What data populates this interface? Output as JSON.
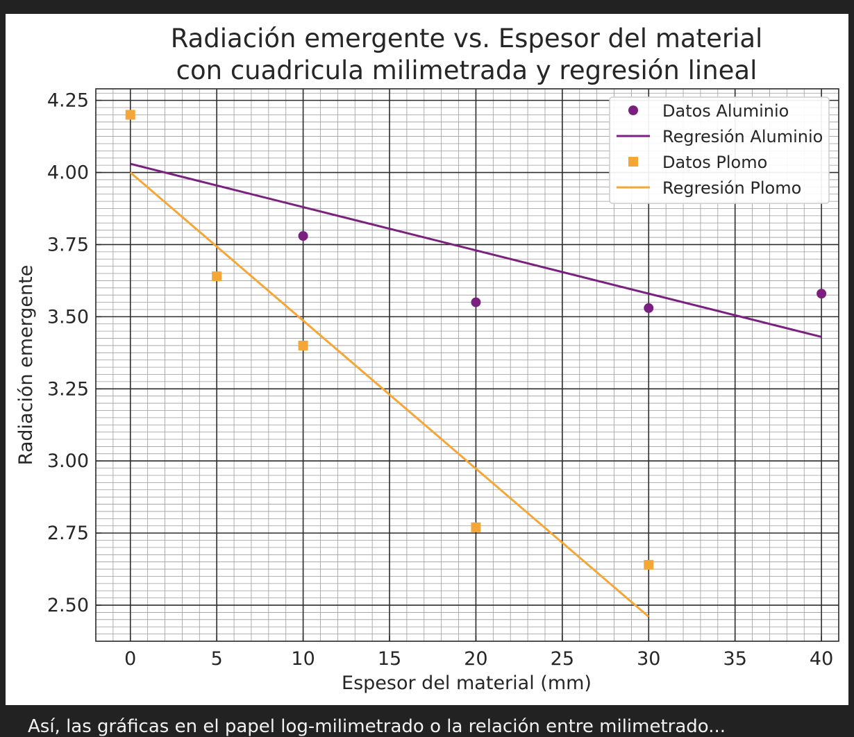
{
  "chart_data": {
    "type": "scatter",
    "title_lines": [
      "Radiación emergente vs. Espesor del material",
      "con cuadricula milimetrada y regresión lineal"
    ],
    "xlabel": "Espesor del material (mm)",
    "ylabel": "Radiación emergente",
    "xlim": [
      -2,
      41
    ],
    "ylim": [
      2.375,
      4.29
    ],
    "xticks": [
      0,
      5,
      10,
      15,
      20,
      25,
      30,
      35,
      40
    ],
    "yticks": [
      2.5,
      2.75,
      3.0,
      3.25,
      3.5,
      3.75,
      4.0,
      4.25
    ],
    "ytick_labels": [
      "2.50",
      "2.75",
      "3.00",
      "3.25",
      "3.50",
      "3.75",
      "4.00",
      "4.25"
    ],
    "grid": "on (major and minor, milimetrada)",
    "legend_position": "top-right",
    "series": [
      {
        "name": "Datos Aluminio",
        "kind": "scatter",
        "marker": "circle",
        "color": "#7b1f80",
        "x": [
          10,
          20,
          30,
          40
        ],
        "y": [
          3.78,
          3.55,
          3.53,
          3.58
        ]
      },
      {
        "name": "Regresión Aluminio",
        "kind": "line",
        "color": "#7b1f80",
        "x": [
          0,
          40
        ],
        "y": [
          4.03,
          3.43
        ]
      },
      {
        "name": "Datos Plomo",
        "kind": "scatter",
        "marker": "square",
        "color": "#f4a636",
        "x": [
          0,
          5,
          10,
          20,
          30
        ],
        "y": [
          4.2,
          3.64,
          3.4,
          2.77,
          2.64
        ]
      },
      {
        "name": "Regresión Plomo",
        "kind": "line",
        "color": "#f4a636",
        "x": [
          0,
          30
        ],
        "y": [
          4.0,
          2.46
        ]
      }
    ]
  },
  "caption": "Así, las gráficas en el papel log-milimetrado o la relación entre milimetrado..."
}
